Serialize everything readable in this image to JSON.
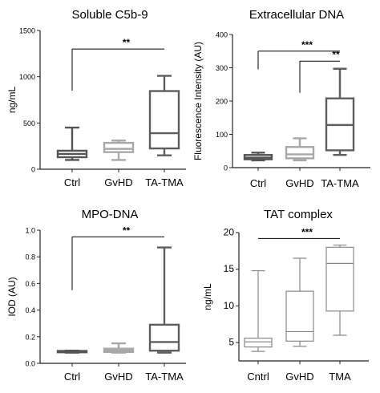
{
  "colors": {
    "axis": "#222222",
    "ctrl": "#555555",
    "gvhd": "#a8a8a8",
    "tma": "#5e5e5e"
  },
  "chart_data": [
    {
      "type": "box",
      "title": "Soluble C5b-9",
      "ylabel": "ng/mL",
      "ylim": [
        0,
        1500
      ],
      "ticks": [
        0,
        500,
        1000,
        1500
      ],
      "tick_labels": [
        "0",
        "500",
        "1000",
        "1500"
      ],
      "categories": [
        "Ctrl",
        "GvHD",
        "TA-TMA"
      ],
      "boxes": [
        {
          "min": 100,
          "q1": 130,
          "median": 165,
          "q3": 200,
          "max": 450,
          "style": "ctrl"
        },
        {
          "min": 100,
          "q1": 185,
          "median": 220,
          "q3": 285,
          "max": 310,
          "style": "gvhd"
        },
        {
          "min": 150,
          "q1": 225,
          "median": 390,
          "q3": 845,
          "max": 1010,
          "style": "tma"
        }
      ],
      "brackets": [
        {
          "from": 0,
          "to": 2,
          "y": 1300,
          "drop": 450,
          "label": "**",
          "level": 0
        }
      ]
    },
    {
      "type": "box",
      "title": "Extracellular DNA",
      "ylabel": "Fluorescence Intensity (AU)",
      "ylim": [
        0,
        400
      ],
      "ticks": [
        0,
        100,
        200,
        300,
        400
      ],
      "tick_labels": [
        "0",
        "100",
        "200",
        "300",
        "400"
      ],
      "categories": [
        "Ctrl",
        "GvHD",
        "TA-TMA"
      ],
      "boxes": [
        {
          "min": 22,
          "q1": 25,
          "median": 30,
          "q3": 38,
          "max": 45,
          "style": "ctrl"
        },
        {
          "min": 22,
          "q1": 28,
          "median": 40,
          "q3": 62,
          "max": 88,
          "style": "gvhd"
        },
        {
          "min": 38,
          "q1": 52,
          "median": 128,
          "q3": 208,
          "max": 297,
          "style": "tma"
        }
      ],
      "brackets": [
        {
          "from": 0,
          "to": 2,
          "y": 350,
          "drop": 55,
          "label": "***",
          "level": 0
        },
        {
          "from": 1,
          "to": 2,
          "y": 320,
          "drop": 95,
          "label": "**",
          "level": 1
        }
      ]
    },
    {
      "type": "box",
      "title": "MPO-DNA",
      "ylabel": "IOD (AU)",
      "ylim": [
        0,
        1
      ],
      "ticks": [
        0,
        0.2,
        0.4,
        0.6,
        0.8,
        1
      ],
      "tick_labels": [
        "0.0",
        "0.2",
        "0.4",
        "0.6",
        "0.8",
        "1.0"
      ],
      "categories": [
        "Ctrl",
        "GvHD",
        "TA-TMA"
      ],
      "boxes": [
        {
          "min": 0.08,
          "q1": 0.083,
          "median": 0.088,
          "q3": 0.093,
          "max": 0.095,
          "style": "ctrl"
        },
        {
          "min": 0.08,
          "q1": 0.085,
          "median": 0.095,
          "q3": 0.11,
          "max": 0.15,
          "style": "gvhd"
        },
        {
          "min": 0.08,
          "q1": 0.095,
          "median": 0.16,
          "q3": 0.29,
          "max": 0.87,
          "style": "tma"
        }
      ],
      "brackets": [
        {
          "from": 0,
          "to": 2,
          "y": 0.95,
          "drop": 0.4,
          "label": "**",
          "level": 0
        }
      ]
    },
    {
      "type": "box",
      "title": "TAT complex",
      "ylabel": "ng/mL",
      "ylim": [
        2.5,
        20
      ],
      "ticks": [
        5,
        10,
        15,
        20
      ],
      "tick_labels": [
        "5",
        "10",
        "15",
        "20"
      ],
      "categories": [
        "Cntrl",
        "GvHD",
        "TMA"
      ],
      "boxes": [
        {
          "min": 3.8,
          "q1": 4.4,
          "median": 5.1,
          "q3": 5.6,
          "max": 14.8,
          "style": "thin"
        },
        {
          "min": 4.5,
          "q1": 5.2,
          "median": 6.5,
          "q3": 12.0,
          "max": 16.5,
          "style": "thin"
        },
        {
          "min": 6.0,
          "q1": 9.3,
          "median": 15.8,
          "q3": 18.0,
          "max": 18.3,
          "style": "thin"
        }
      ],
      "brackets": [
        {
          "from": 0,
          "to": 2,
          "y": 19.2,
          "drop": 0,
          "label": "***",
          "level": 0
        }
      ]
    }
  ]
}
